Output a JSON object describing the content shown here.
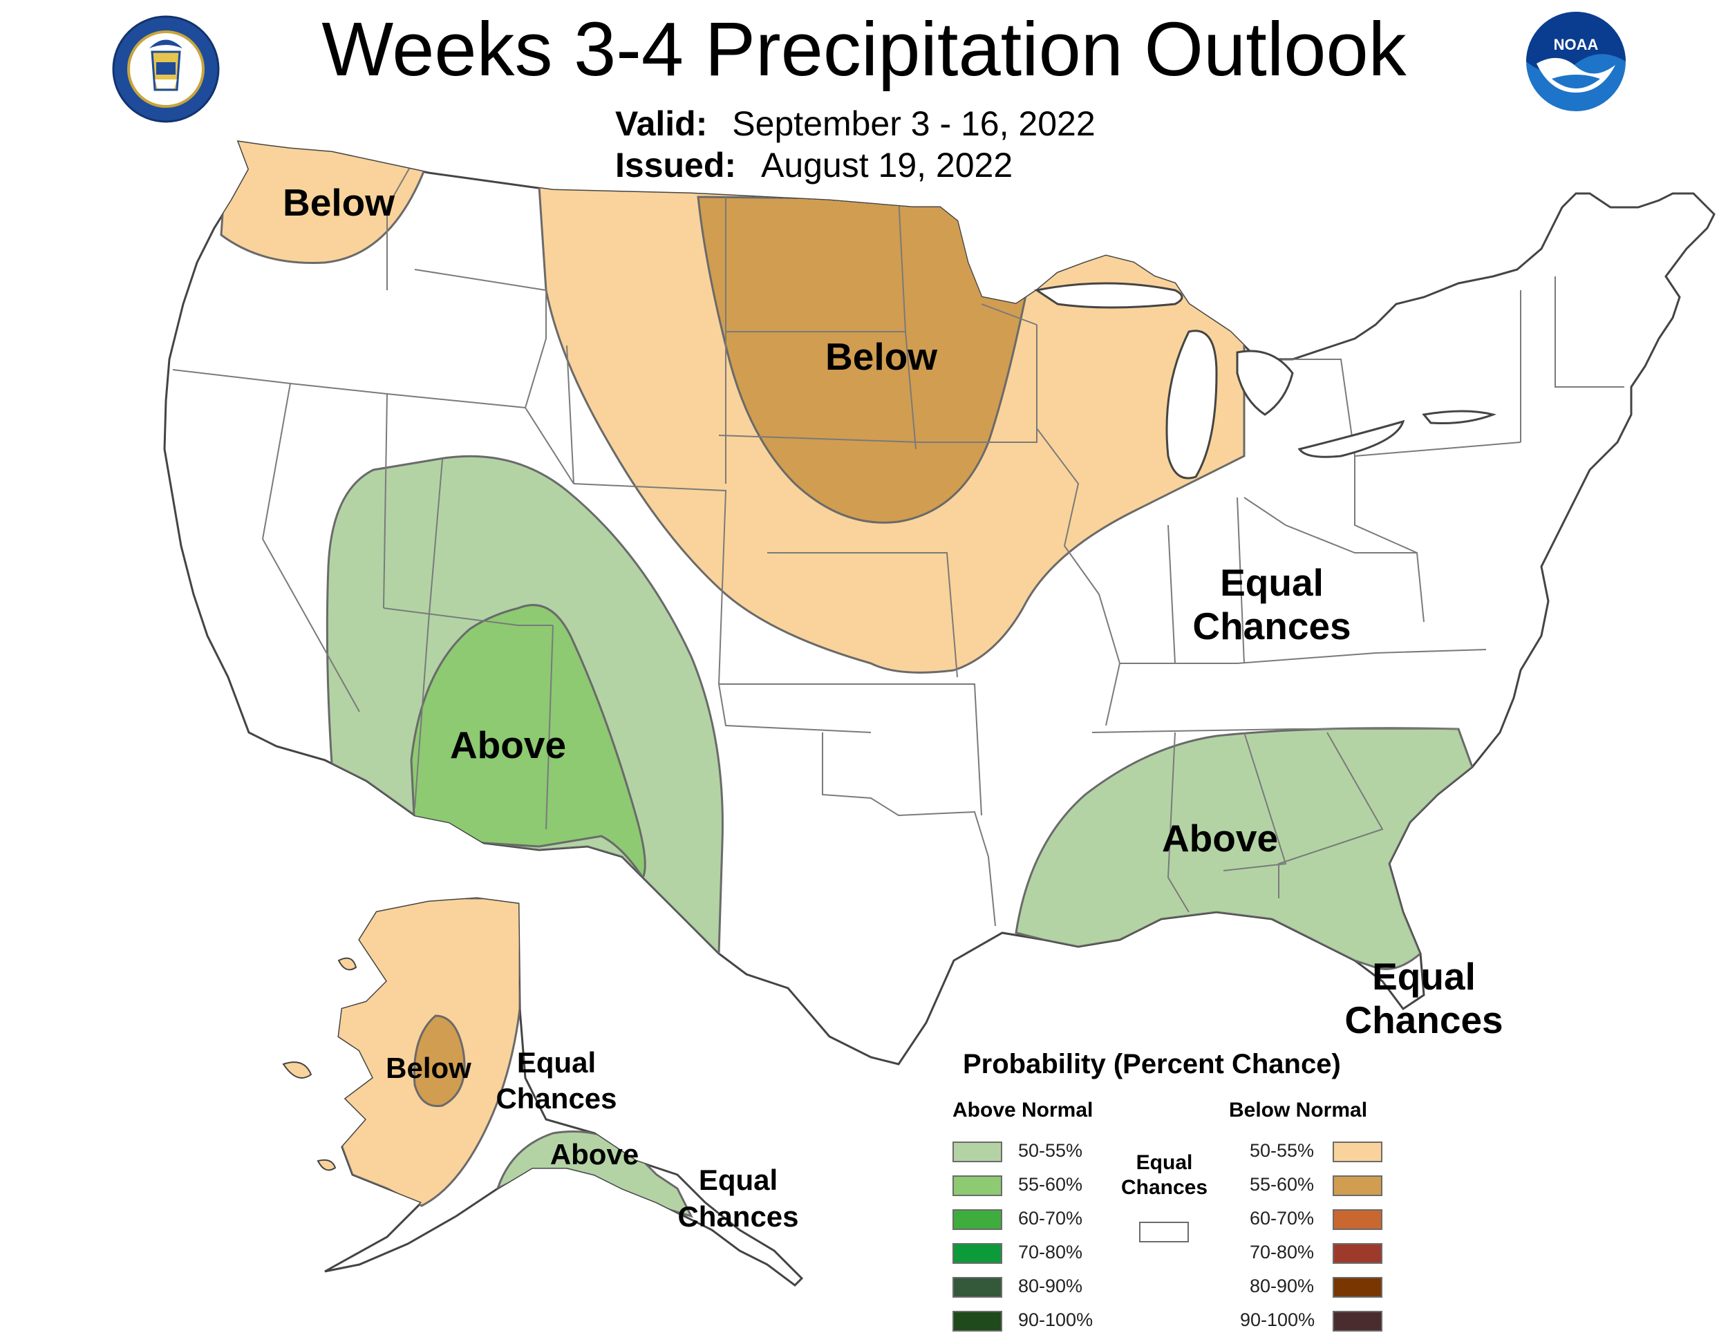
{
  "header": {
    "title": "Weeks 3-4 Precipitation Outlook",
    "valid_label": "Valid:",
    "valid_value": "September 3 - 16, 2022",
    "issued_label": "Issued:",
    "issued_value": "August 19, 2022",
    "doc_seal_icon": "department-of-commerce-seal-icon",
    "noaa_logo_text": "NOAA"
  },
  "map": {
    "region_labels": {
      "northwest": "Below",
      "north_central": "Below",
      "southwest": "Above",
      "southeast": "Above",
      "east_line1": "Equal",
      "east_line2": "Chances",
      "florida_line1": "Equal",
      "florida_line2": "Chances",
      "alaska_west": "Below",
      "alaska_central_line1": "Equal",
      "alaska_central_line2": "Chances",
      "alaska_south": "Above",
      "alaska_se_line1": "Equal",
      "alaska_se_line2": "Chances"
    },
    "colors": {
      "above_50_55": "#b3d3a5",
      "above_55_60": "#8dca72",
      "below_50_55": "#f9d39b",
      "below_55_60": "#d19d50",
      "land": "#ffffff",
      "borders": "#555555"
    }
  },
  "legend": {
    "title": "Probability (Percent Chance)",
    "above_header": "Above Normal",
    "below_header": "Below Normal",
    "equal_line1": "Equal",
    "equal_line2": "Chances",
    "above_items": [
      {
        "label": "50-55%",
        "color": "#b3d3a5"
      },
      {
        "label": "55-60%",
        "color": "#8dca72"
      },
      {
        "label": "60-70%",
        "color": "#3ead3e"
      },
      {
        "label": "70-80%",
        "color": "#0c9a3b"
      },
      {
        "label": "80-90%",
        "color": "#33593a"
      },
      {
        "label": "90-100%",
        "color": "#1f4a1a"
      }
    ],
    "below_items": [
      {
        "label": "50-55%",
        "color": "#f9d39b"
      },
      {
        "label": "55-60%",
        "color": "#d19d50"
      },
      {
        "label": "60-70%",
        "color": "#c86730"
      },
      {
        "label": "70-80%",
        "color": "#9e3a2c"
      },
      {
        "label": "80-90%",
        "color": "#7a3600"
      },
      {
        "label": "90-100%",
        "color": "#4b2c2e"
      }
    ]
  }
}
